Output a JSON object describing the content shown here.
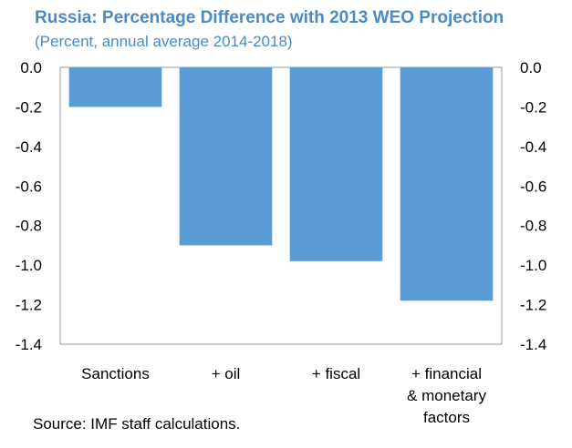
{
  "chart_data": {
    "type": "bar",
    "title": "Russia: Percentage Difference with 2013 WEO Projection",
    "subtitle": "(Percent, annual average 2014-2018)",
    "categories": [
      [
        "Sanctions"
      ],
      [
        "+ oil"
      ],
      [
        "+ fiscal"
      ],
      [
        "+ financial",
        "& monetary",
        "factors"
      ]
    ],
    "values": [
      -0.2,
      -0.9,
      -0.98,
      -1.18
    ],
    "ylim": [
      -1.4,
      0.0
    ],
    "yticks": [
      "0.0",
      "-0.2",
      "-0.4",
      "-0.6",
      "-0.8",
      "-1.0",
      "-1.2",
      "-1.4"
    ],
    "ytick_values": [
      0.0,
      -0.2,
      -0.4,
      -0.6,
      -0.8,
      -1.0,
      -1.2,
      -1.4
    ],
    "secondary_y_axis": true,
    "grid": false,
    "bar_color": "#5b9bd5",
    "source": "Source: IMF staff calculations."
  }
}
